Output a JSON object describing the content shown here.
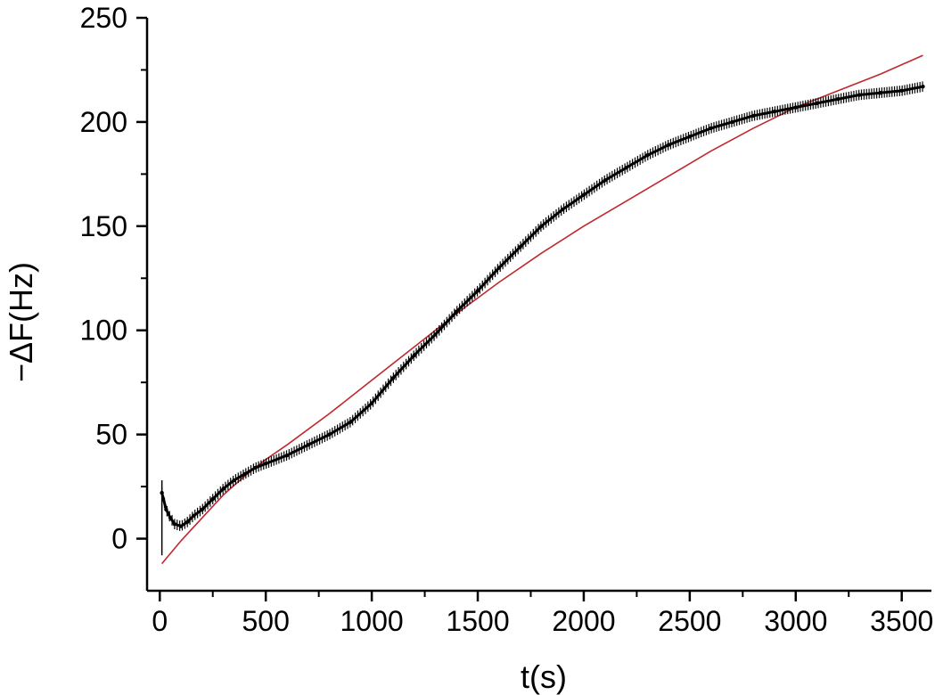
{
  "chart_data": {
    "type": "line",
    "title": "",
    "xlabel": "t(s)",
    "ylabel": "−ΔF(Hz)",
    "xlim": [
      -60,
      3640
    ],
    "ylim": [
      -25,
      250
    ],
    "x_ticks": [
      0,
      500,
      1000,
      1500,
      2000,
      2500,
      3000,
      3500
    ],
    "y_ticks": [
      0,
      50,
      100,
      150,
      200,
      250
    ],
    "x_tick_labels": [
      "0",
      "500",
      "1000",
      "1500",
      "2000",
      "2500",
      "3000",
      "3500"
    ],
    "y_tick_labels": [
      "0",
      "50",
      "100",
      "150",
      "200",
      "250"
    ],
    "grid": false,
    "legend": "none",
    "series": [
      {
        "style": "measured data with error bars",
        "color": "#000000",
        "x": [
          10,
          30,
          50,
          70,
          100,
          130,
          160,
          200,
          250,
          300,
          350,
          400,
          450,
          500,
          600,
          700,
          800,
          900,
          1000,
          1100,
          1200,
          1300,
          1400,
          1500,
          1600,
          1700,
          1800,
          1900,
          2000,
          2100,
          2200,
          2300,
          2400,
          2500,
          2600,
          2700,
          2800,
          2900,
          3000,
          3100,
          3200,
          3300,
          3400,
          3500,
          3600
        ],
        "y": [
          22,
          14,
          10,
          7,
          6,
          8,
          11,
          14,
          19,
          24,
          28,
          31,
          34,
          36,
          40,
          45,
          50,
          56,
          65,
          77,
          88,
          98,
          109,
          119,
          130,
          140,
          150,
          158,
          165,
          172,
          178,
          184,
          189,
          193,
          197,
          200,
          203,
          205,
          207,
          209,
          211,
          213,
          214,
          215,
          217
        ],
        "y_error": 2.5
      },
      {
        "style": "fit curve",
        "color": "#c0282d",
        "x": [
          10,
          100,
          200,
          300,
          400,
          500,
          600,
          800,
          1000,
          1200,
          1400,
          1600,
          1800,
          2000,
          2200,
          2400,
          2600,
          2800,
          3000,
          3200,
          3400,
          3600
        ],
        "y": [
          -12,
          -1,
          10,
          21,
          30,
          38,
          45,
          60,
          76,
          92,
          108,
          123,
          137,
          150,
          162,
          174,
          186,
          197,
          207,
          215,
          223,
          232
        ]
      }
    ]
  }
}
